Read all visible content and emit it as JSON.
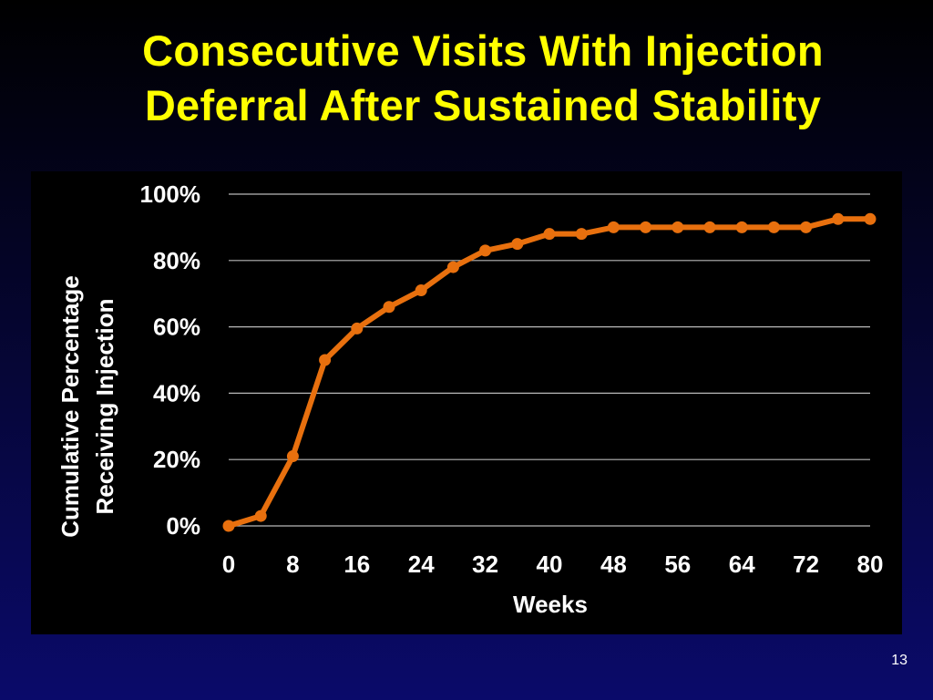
{
  "slide": {
    "title_line1": "Consecutive Visits With Injection",
    "title_line2": "Deferral After Sustained Stability",
    "page_number": "13"
  },
  "chart_data": {
    "type": "line",
    "xlabel": "Weeks",
    "ylabel_line1": "Cumulative Percentage",
    "ylabel_line2": "Receiving Injection",
    "xlim": [
      0,
      80
    ],
    "ylim": [
      0,
      100
    ],
    "x_ticks": [
      0,
      8,
      16,
      24,
      32,
      40,
      48,
      56,
      64,
      72,
      80
    ],
    "y_ticks": [
      0,
      20,
      40,
      60,
      80,
      100
    ],
    "y_tick_labels": [
      "0%",
      "20%",
      "40%",
      "60%",
      "80%",
      "100%"
    ],
    "grid": true,
    "line_color": "#e8700e",
    "series": [
      {
        "x": [
          0,
          4,
          8,
          12,
          16,
          20,
          24,
          28,
          32,
          36,
          40,
          44,
          48,
          52,
          56,
          60,
          64,
          68,
          72,
          76,
          80
        ],
        "y": [
          0,
          3,
          21,
          50,
          59.5,
          66,
          71,
          78,
          83,
          85,
          88,
          88,
          90,
          90,
          90,
          90,
          90,
          90,
          90,
          92.5,
          92.5
        ]
      }
    ]
  }
}
